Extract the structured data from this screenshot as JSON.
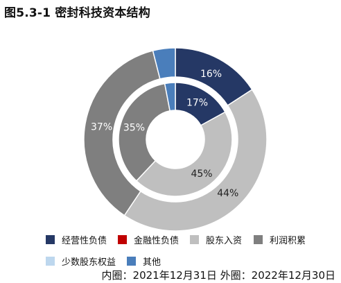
{
  "title": "图5.3-1 密封科技资本结构",
  "chart_data": {
    "type": "pie",
    "variant": "double-donut",
    "categories": [
      "经营性负债",
      "金融性负债",
      "股东入资",
      "利润积累",
      "少数股东权益",
      "其他"
    ],
    "colors": [
      "#253865",
      "#c00000",
      "#bfbfbf",
      "#7f7f7f",
      "#bdd7ee",
      "#4a7ebb"
    ],
    "series": [
      {
        "name": "内圈",
        "date": "2021年12月31日",
        "values": [
          17,
          0,
          45,
          35,
          0,
          3
        ],
        "labels": [
          "17%",
          "",
          "45%",
          "35%",
          "",
          ""
        ]
      },
      {
        "name": "外圈",
        "date": "2022年12月30日",
        "values": [
          16,
          0,
          44,
          37,
          0,
          4
        ],
        "labels": [
          "16%",
          "",
          "44%",
          "37%",
          "",
          ""
        ]
      }
    ]
  },
  "footnote": "内圈：2021年12月31日 外圈：2022年12月30日"
}
